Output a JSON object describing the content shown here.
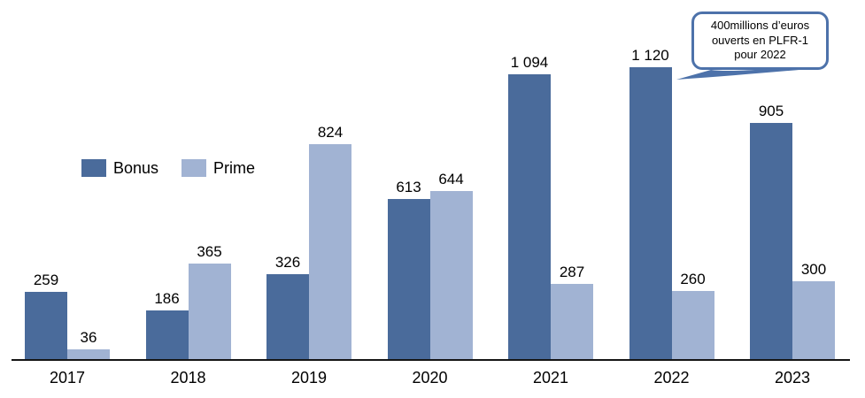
{
  "chart_data": {
    "type": "bar",
    "title": "",
    "xlabel": "",
    "ylabel": "",
    "categories": [
      "2017",
      "2018",
      "2019",
      "2020",
      "2021",
      "2022",
      "2023"
    ],
    "series": [
      {
        "name": "Bonus",
        "color": "#4a6b9b",
        "values": [
          259,
          186,
          326,
          613,
          1094,
          1120,
          905
        ]
      },
      {
        "name": "Prime",
        "color": "#a1b3d3",
        "values": [
          36,
          365,
          824,
          644,
          287,
          260,
          300
        ]
      }
    ],
    "ylim": [
      0,
      1120
    ],
    "grid": false,
    "y_axis_visible": false,
    "value_labels": true,
    "legend_position": "inside-left-middle",
    "axis_color": "#151515",
    "annotation": {
      "shape": "rounded-callout",
      "border_color": "#4d72aa",
      "target_category": "2022",
      "lines": [
        "400millions d’euros",
        "ouverts en PLFR-1",
        "pour 2022"
      ]
    }
  }
}
